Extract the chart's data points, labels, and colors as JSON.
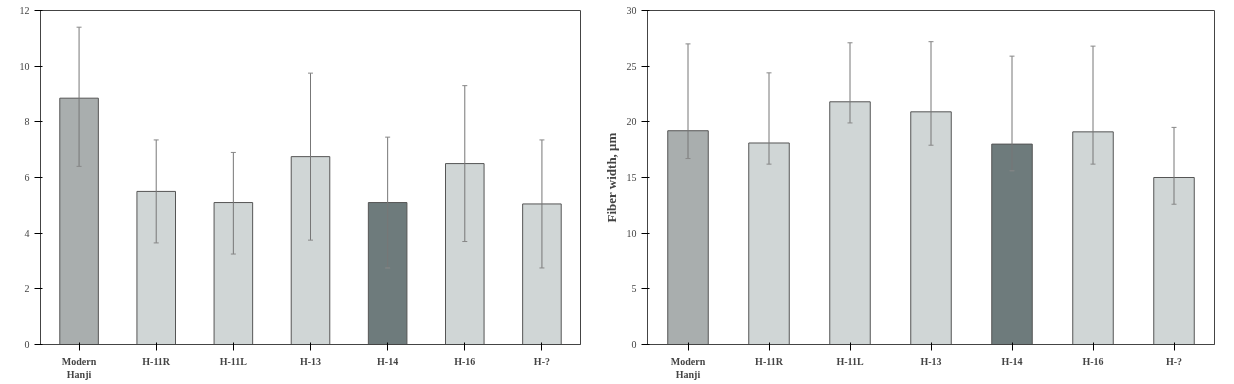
{
  "chart_data": [
    {
      "type": "bar",
      "categories": [
        "Modern Hanji",
        "H-11R",
        "H-11L",
        "H-13",
        "H-14",
        "H-16",
        "H-?"
      ],
      "values": [
        8.85,
        5.5,
        5.1,
        6.75,
        5.1,
        6.5,
        5.05
      ],
      "colors": [
        "#a9aeae",
        "#d0d6d6",
        "#d0d6d6",
        "#d0d6d6",
        "#6e7b7c",
        "#d0d6d6",
        "#d0d6d6"
      ],
      "errors": [
        [
          6.4,
          11.4
        ],
        [
          3.65,
          7.35
        ],
        [
          3.25,
          6.9
        ],
        [
          3.75,
          9.75
        ],
        [
          2.75,
          7.45
        ],
        [
          3.7,
          9.3
        ],
        [
          2.75,
          7.35
        ]
      ],
      "ylim": [
        0,
        12
      ],
      "yticks": [
        0,
        2,
        4,
        6,
        8,
        10,
        12
      ],
      "grid": false
    },
    {
      "type": "bar",
      "categories": [
        "Modern Hanji",
        "H-11R",
        "H-11L",
        "H-13",
        "H-14",
        "H-16",
        "H-?"
      ],
      "values": [
        19.2,
        18.1,
        21.8,
        20.9,
        18.0,
        19.1,
        15.0
      ],
      "colors": [
        "#a9aeae",
        "#d0d6d6",
        "#d0d6d6",
        "#d0d6d6",
        "#6e7b7c",
        "#d0d6d6",
        "#d0d6d6"
      ],
      "errors": [
        [
          16.7,
          27.0
        ],
        [
          16.2,
          24.4
        ],
        [
          19.9,
          27.1
        ],
        [
          17.9,
          27.2
        ],
        [
          15.6,
          25.9
        ],
        [
          16.2,
          26.8
        ],
        [
          12.6,
          19.5
        ]
      ],
      "ylabel": "Fiber width, μm",
      "ylim": [
        0,
        30
      ],
      "yticks": [
        0,
        5,
        10,
        15,
        20,
        25,
        30
      ],
      "grid": false
    }
  ]
}
